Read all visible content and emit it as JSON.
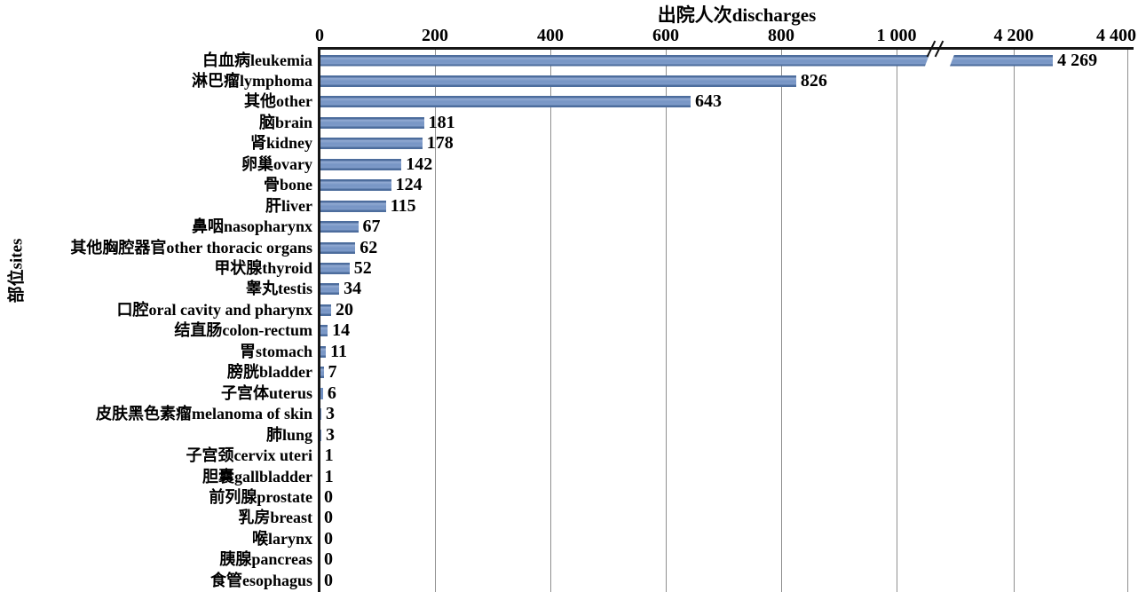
{
  "chart_data": {
    "type": "bar",
    "orientation": "horizontal",
    "title": "",
    "xlabel": "出院人次discharges",
    "ylabel": "部位sites",
    "grid": true,
    "legend": false,
    "axis": {
      "position": "top",
      "break_after": 1000,
      "break_resume": 4200,
      "xlim_segments": [
        [
          0,
          1000
        ],
        [
          4200,
          4400
        ]
      ],
      "ticks": [
        {
          "label": "0",
          "value": 0
        },
        {
          "label": "200",
          "value": 200
        },
        {
          "label": "400",
          "value": 400
        },
        {
          "label": "600",
          "value": 600
        },
        {
          "label": "800",
          "value": 800
        },
        {
          "label": "1 000",
          "value": 1000
        },
        {
          "label": "4 200",
          "value": 4200
        },
        {
          "label": "4 400",
          "value": 4400
        }
      ]
    },
    "categories": [
      "白血病leukemia",
      "淋巴瘤lymphoma",
      "其他other",
      "脑brain",
      "肾kidney",
      "卵巢ovary",
      "骨bone",
      "肝liver",
      "鼻咽nasopharynx",
      "其他胸腔器官other thoracic organs",
      "甲状腺thyroid",
      "睾丸testis",
      "口腔oral cavity and pharynx",
      "结直肠colon-rectum",
      "胃stomach",
      "膀胱bladder",
      "子宫体uterus",
      "皮肤黑色素瘤melanoma of skin",
      "肺lung",
      "子宫颈cervix uteri",
      "胆囊gallbladder",
      "前列腺prostate",
      "乳房breast",
      "喉larynx",
      "胰腺pancreas",
      "食管esophagus"
    ],
    "values": [
      4269,
      826,
      643,
      181,
      178,
      142,
      124,
      115,
      67,
      62,
      52,
      34,
      20,
      14,
      11,
      7,
      6,
      3,
      3,
      1,
      1,
      0,
      0,
      0,
      0,
      0
    ],
    "value_labels": [
      "4 269",
      "826",
      "643",
      "181",
      "178",
      "142",
      "124",
      "115",
      "67",
      "62",
      "52",
      "34",
      "20",
      "14",
      "11",
      "7",
      "6",
      "3",
      "3",
      "1",
      "1",
      "0",
      "0",
      "0",
      "0",
      "0"
    ],
    "colors": {
      "bar_fill": "#7795c5",
      "bar_edge": "#4d6d9d",
      "gridline": "#8f8f8f",
      "axis_line": "#161616",
      "text": "#000000",
      "background": "#ffffff"
    }
  }
}
